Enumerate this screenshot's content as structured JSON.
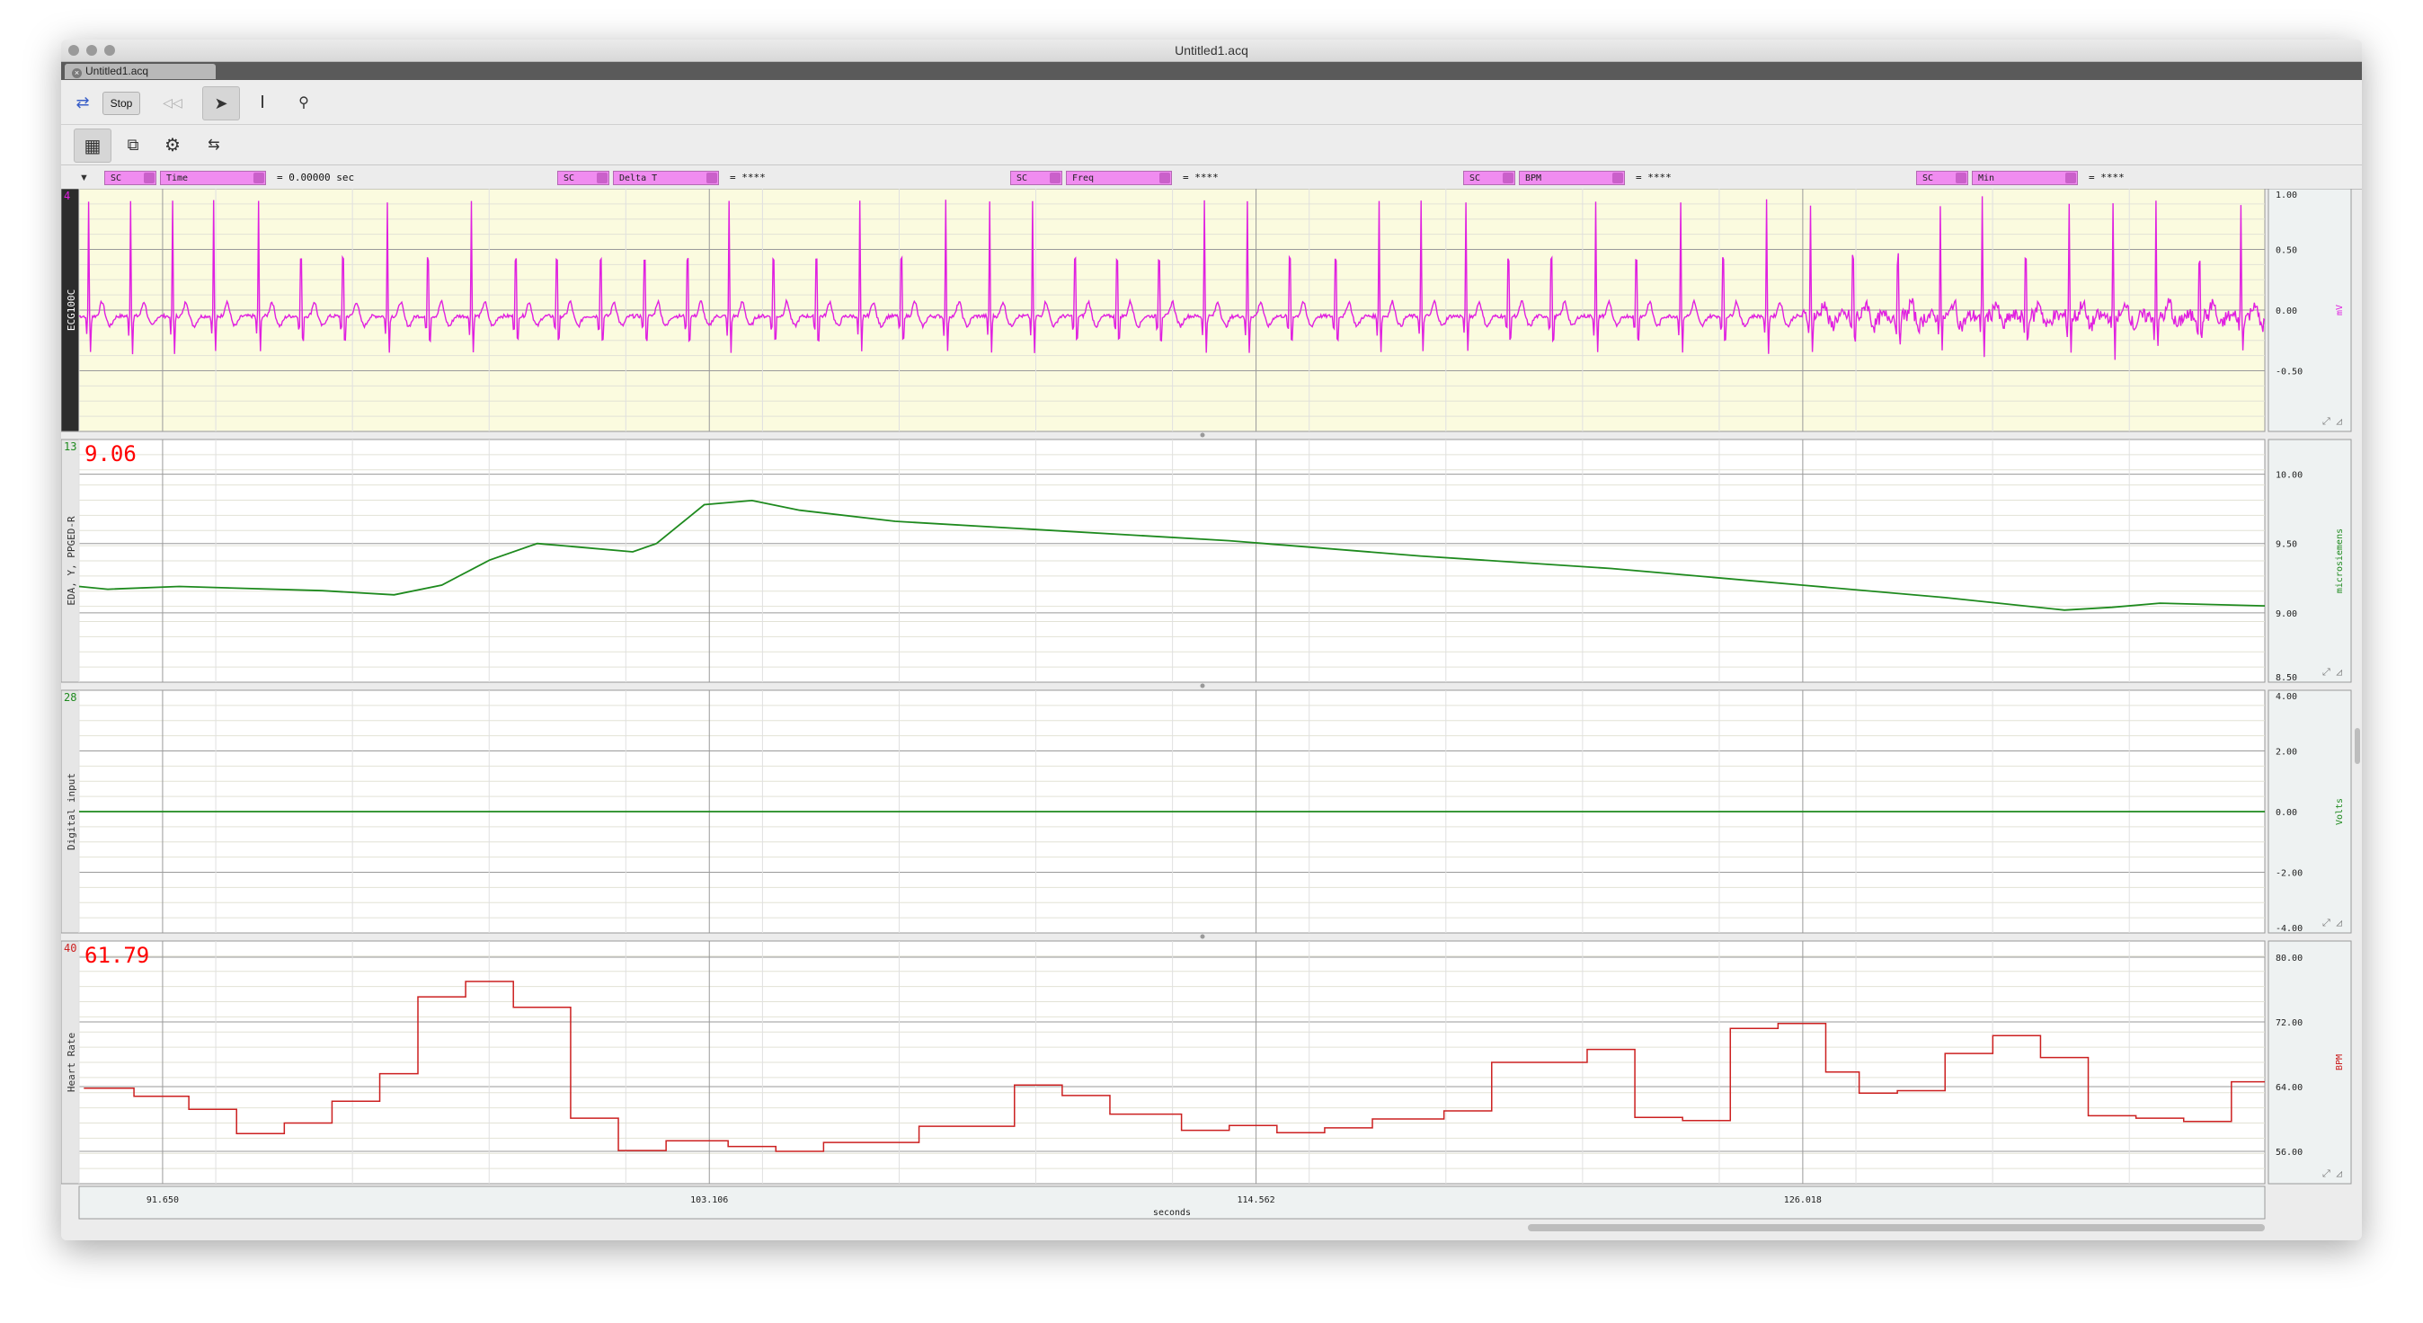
{
  "window": {
    "title": "Untitled1.acq"
  },
  "tab": {
    "label": "Untitled1.acq"
  },
  "toolbar": {
    "stop_label": "Stop"
  },
  "measurements": [
    {
      "source": "SC",
      "type": "Time",
      "value": "0.00000 sec"
    },
    {
      "source": "SC",
      "type": "Delta T",
      "value": "****"
    },
    {
      "source": "SC",
      "type": "Freq",
      "value": "****"
    },
    {
      "source": "SC",
      "type": "BPM",
      "value": "****"
    },
    {
      "source": "SC",
      "type": "Min",
      "value": "****"
    }
  ],
  "channels": [
    {
      "number": "4",
      "label": "ECG100C",
      "unit": "mV",
      "ticks": [
        "1.00",
        "0.50",
        "0.00",
        "-0.50"
      ],
      "color": "#e020e0",
      "value_display": ""
    },
    {
      "number": "13",
      "label": "EDA, Y, PPGED-R",
      "unit": "microsiemens",
      "ticks": [
        "10.00",
        "9.50",
        "9.00",
        "8.50"
      ],
      "color": "#1e8a1e",
      "value_display": "9.06"
    },
    {
      "number": "28",
      "label": "Digital input",
      "unit": "Volts",
      "ticks": [
        "4.00",
        "2.00",
        "0.00",
        "-2.00",
        "-4.00"
      ],
      "color": "#1e8a1e",
      "value_display": ""
    },
    {
      "number": "40",
      "label": "Heart Rate",
      "unit": "BPM",
      "ticks": [
        "80.00",
        "72.00",
        "64.00",
        "56.00"
      ],
      "color": "#cc2020",
      "value_display": "61.79"
    }
  ],
  "x_axis": {
    "label": "seconds",
    "ticks": [
      "91.650",
      "103.106",
      "114.562",
      "126.018"
    ]
  },
  "chart_data": [
    {
      "type": "line",
      "name": "ECG100C",
      "units": "mV",
      "x_range": [
        89.9,
        135.7
      ],
      "ylim": [
        -1.0,
        1.0
      ],
      "beat_times": [
        90.1,
        90.98,
        91.86,
        92.72,
        93.66,
        94.55,
        95.43,
        96.36,
        97.21,
        98.12,
        99.05,
        99.91,
        100.83,
        101.75,
        102.65,
        103.52,
        104.45,
        105.35,
        106.26,
        107.13,
        108.06,
        108.98,
        109.88,
        110.77,
        111.65,
        112.53,
        113.48,
        114.38,
        115.27,
        116.23,
        117.14,
        118.02,
        118.96,
        119.85,
        120.75,
        121.68,
        122.53,
        123.46,
        124.35,
        125.26,
        126.18,
        127.07,
        128.01,
        128.9,
        129.78,
        130.69,
        131.6,
        132.52,
        133.42,
        134.33,
        135.2
      ],
      "r_peak_mV": 0.95,
      "baseline_mV": -0.05
    },
    {
      "type": "line",
      "name": "EDA, Y, PPGED-R",
      "units": "microsiemens",
      "ylim": [
        8.5,
        10.25
      ],
      "x": [
        89.9,
        90.5,
        92.0,
        95.0,
        96.5,
        97.5,
        98.5,
        99.5,
        100.5,
        101.5,
        102.0,
        102.5,
        103.0,
        104.0,
        105.0,
        107.0,
        110.0,
        114.0,
        118.0,
        122.0,
        126.0,
        129.0,
        131.5,
        132.5,
        133.5,
        135.7
      ],
      "y": [
        9.19,
        9.17,
        9.19,
        9.16,
        9.13,
        9.2,
        9.38,
        9.5,
        9.47,
        9.44,
        9.5,
        9.64,
        9.78,
        9.81,
        9.74,
        9.66,
        9.6,
        9.52,
        9.41,
        9.32,
        9.2,
        9.11,
        9.02,
        9.04,
        9.07,
        9.05
      ]
    },
    {
      "type": "line",
      "name": "Digital input",
      "units": "Volts",
      "ylim": [
        -4,
        4
      ],
      "x": [
        89.9,
        135.7
      ],
      "y": [
        0,
        0
      ]
    },
    {
      "type": "line",
      "step": true,
      "name": "Heart Rate",
      "units": "BPM",
      "ylim": [
        52,
        82
      ],
      "x": [
        90.0,
        91.05,
        92.2,
        93.2,
        94.2,
        95.2,
        96.2,
        97.0,
        98.0,
        99.0,
        100.2,
        101.2,
        102.2,
        103.5,
        104.5,
        105.5,
        107.5,
        109.5,
        110.5,
        111.5,
        113.0,
        114.0,
        115.0,
        116.0,
        117.0,
        118.5,
        119.5,
        121.5,
        122.5,
        123.5,
        124.5,
        125.5,
        126.5,
        127.2,
        128.0,
        129.0,
        130.0,
        131.0,
        132.0,
        133.0,
        134.0,
        135.0
      ],
      "y": [
        63.8,
        62.8,
        61.2,
        58.2,
        59.5,
        62.2,
        65.6,
        75.1,
        77.0,
        73.8,
        60.1,
        56.1,
        57.3,
        56.6,
        56.0,
        57.1,
        59.1,
        64.2,
        62.9,
        60.6,
        58.6,
        59.2,
        58.3,
        58.9,
        60.0,
        61.0,
        67.0,
        68.6,
        60.2,
        59.8,
        71.2,
        71.8,
        65.8,
        63.2,
        63.5,
        68.1,
        70.3,
        67.6,
        60.4,
        60.1,
        59.7,
        64.6
      ]
    }
  ]
}
